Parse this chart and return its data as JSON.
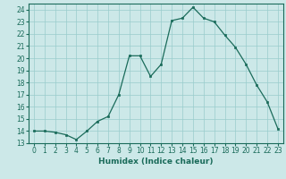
{
  "x": [
    0,
    1,
    2,
    3,
    4,
    5,
    6,
    7,
    8,
    9,
    10,
    11,
    12,
    13,
    14,
    15,
    16,
    17,
    18,
    19,
    20,
    21,
    22,
    23
  ],
  "y": [
    14.0,
    14.0,
    13.9,
    13.7,
    13.3,
    14.0,
    14.8,
    15.2,
    17.0,
    20.2,
    20.2,
    18.5,
    19.5,
    23.1,
    23.3,
    24.2,
    23.3,
    23.0,
    21.9,
    20.9,
    19.5,
    17.8,
    16.4,
    14.2
  ],
  "line_color": "#1a6b5a",
  "marker_color": "#1a6b5a",
  "bg_color": "#cce8e8",
  "grid_color": "#99cccc",
  "xlabel": "Humidex (Indice chaleur)",
  "xlim": [
    -0.5,
    23.5
  ],
  "ylim": [
    13.0,
    24.5
  ],
  "xticks": [
    0,
    1,
    2,
    3,
    4,
    5,
    6,
    7,
    8,
    9,
    10,
    11,
    12,
    13,
    14,
    15,
    16,
    17,
    18,
    19,
    20,
    21,
    22,
    23
  ],
  "yticks": [
    13,
    14,
    15,
    16,
    17,
    18,
    19,
    20,
    21,
    22,
    23,
    24
  ],
  "tick_fontsize": 5.5,
  "label_fontsize": 6.5
}
